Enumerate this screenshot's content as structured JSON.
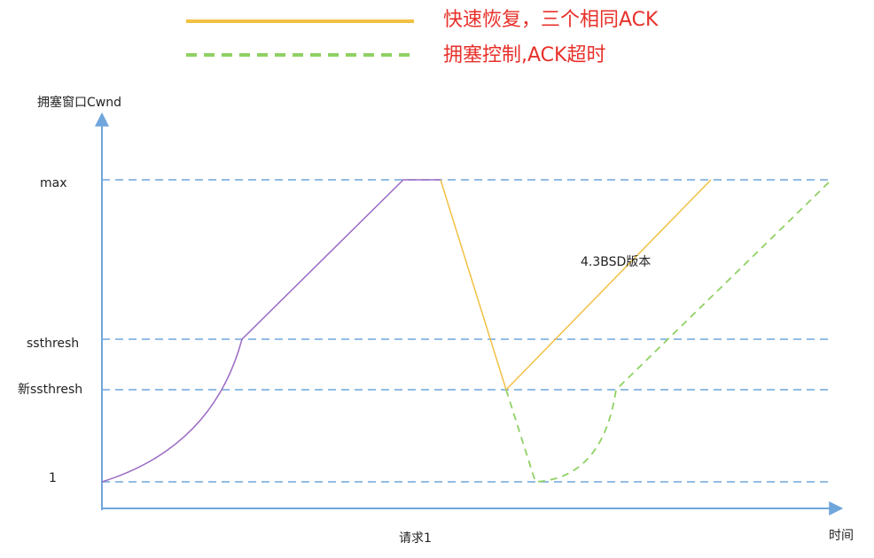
{
  "legend": [
    {
      "label": "快速恢复，三个相同ACK"
    },
    {
      "label": "拥塞控制,ACK超时"
    }
  ],
  "axes": {
    "y_label": "拥塞窗口Cwnd",
    "x_label": "时间"
  },
  "levels": [
    "max",
    "ssthresh",
    "新ssthresh",
    "1"
  ],
  "annotations": {
    "version": "4.3BSD版本",
    "request": "请求1"
  }
}
